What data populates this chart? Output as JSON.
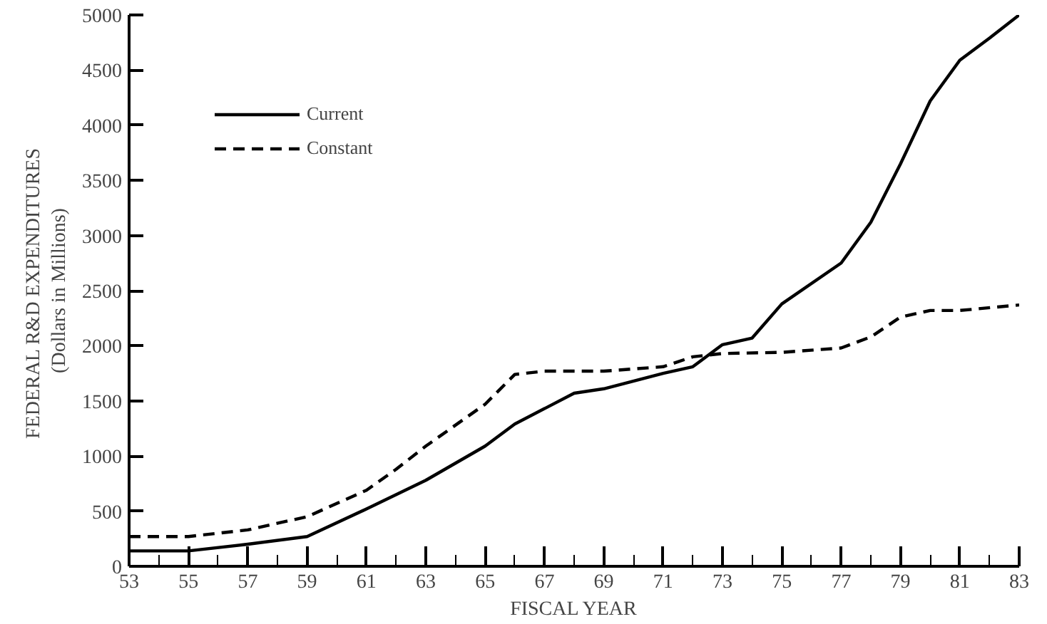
{
  "chart_data": {
    "type": "line",
    "xlabel": "FISCAL YEAR",
    "ylabel": "FEDERAL  R&D EXPENDITURES\n(Dollars in Millions)",
    "xlim": [
      53,
      83
    ],
    "xticks": [
      53,
      55,
      57,
      59,
      61,
      63,
      65,
      67,
      69,
      71,
      73,
      75,
      77,
      79,
      81,
      83
    ],
    "ylim": [
      0,
      5000
    ],
    "yticks": [
      0,
      500,
      1000,
      1500,
      2000,
      2500,
      3000,
      3500,
      4000,
      4500,
      5000
    ],
    "grid": false,
    "legend": "top left",
    "marker": "none",
    "series": [
      {
        "name": "Current",
        "color": "#000000",
        "line_style": "solid",
        "x": [
          53,
          55,
          57,
          59,
          61,
          63,
          65,
          66,
          68,
          69,
          71,
          72,
          73,
          74,
          75,
          77,
          78,
          79,
          80,
          81,
          82,
          83
        ],
        "values": [
          140,
          140,
          200,
          270,
          520,
          780,
          1090,
          1290,
          1570,
          1610,
          1750,
          1810,
          2010,
          2070,
          2380,
          2750,
          3120,
          3650,
          4220,
          4590,
          4790,
          5000
        ]
      },
      {
        "name": "Constant",
        "color": "#000000",
        "line_style": "dashed",
        "x": [
          53,
          55,
          57,
          59,
          61,
          62,
          63,
          65,
          66,
          67,
          69,
          71,
          72,
          73,
          75,
          77,
          78,
          79,
          80,
          81,
          83
        ],
        "values": [
          270,
          270,
          330,
          450,
          690,
          880,
          1090,
          1470,
          1740,
          1770,
          1770,
          1810,
          1900,
          1930,
          1940,
          1980,
          2080,
          2260,
          2320,
          2320,
          2370
        ]
      }
    ]
  }
}
